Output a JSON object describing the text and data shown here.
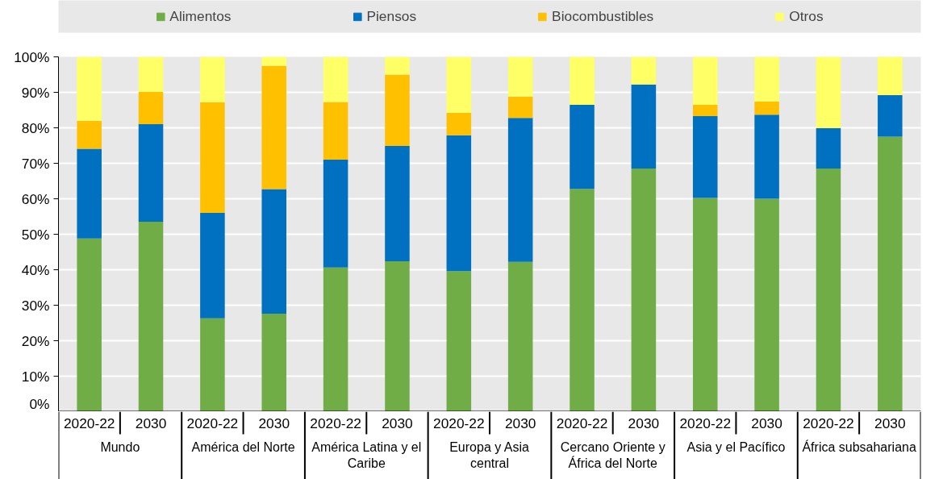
{
  "chart_data": {
    "type": "bar",
    "stacked": true,
    "categories": [
      "2020-22",
      "2030",
      "2020-22",
      "2030",
      "2020-22",
      "2030",
      "2020-22",
      "2030",
      "2020-22",
      "2030",
      "2020-22",
      "2030",
      "2020-22",
      "2030"
    ],
    "series": [
      {
        "name": "Alimentos",
        "color": "#70ad47",
        "values": [
          48.8,
          53.5,
          26.3,
          27.6,
          40.6,
          42.4,
          39.6,
          42.2,
          62.8,
          68.5,
          60.2,
          60.0,
          68.5,
          77.5
        ]
      },
      {
        "name": "Piensos",
        "color": "#0070c0",
        "values": [
          25.3,
          27.5,
          29.7,
          35.1,
          30.4,
          32.5,
          38.3,
          40.6,
          23.7,
          23.7,
          23.1,
          23.7,
          11.4,
          11.7
        ]
      },
      {
        "name": "Biocombustibles",
        "color": "#ffc000",
        "values": [
          7.9,
          9.1,
          31.2,
          34.8,
          16.3,
          20.1,
          6.3,
          6.0,
          0,
          0,
          3.2,
          3.7,
          0,
          0
        ]
      },
      {
        "name": "Otros",
        "color": "#ffff66",
        "values": [
          18.0,
          9.9,
          12.8,
          2.5,
          12.7,
          5.0,
          15.8,
          11.2,
          13.5,
          7.8,
          13.5,
          12.6,
          20.1,
          10.8
        ]
      }
    ],
    "annotations": [
      "Mundo",
      "América del Norte",
      "América Latina y el Caribe",
      "Europa y Asia central",
      "Cercano Oriente y África del Norte",
      "Asia y el Pacífico",
      "África subsahariana"
    ],
    "ylim": [
      0,
      100
    ],
    "yticks": [
      {
        "value": 0,
        "label": "0%"
      },
      {
        "value": 10,
        "label": "10%"
      },
      {
        "value": 20,
        "label": "20%"
      },
      {
        "value": 30,
        "label": "30%"
      },
      {
        "value": 40,
        "label": "40%"
      },
      {
        "value": 50,
        "label": "50%"
      },
      {
        "value": 60,
        "label": "60%"
      },
      {
        "value": 70,
        "label": "70%"
      },
      {
        "value": 80,
        "label": "80%"
      },
      {
        "value": 90,
        "label": "90%"
      },
      {
        "value": 100,
        "label": "100%"
      }
    ],
    "grid": "y",
    "legend": "top"
  }
}
